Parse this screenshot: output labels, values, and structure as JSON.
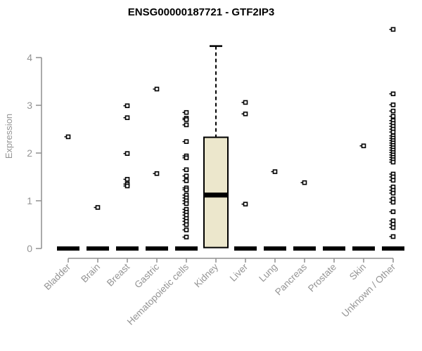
{
  "chart_data": {
    "type": "boxplot",
    "title": "ENSG00000187721 - GTF2IP3",
    "ylabel": "Expression",
    "xlabel": "",
    "ylim": [
      0,
      4.6
    ],
    "yticks": [
      0,
      1,
      2,
      3,
      4
    ],
    "grid": false,
    "legend": "none",
    "colors": {
      "box_fill": "#ECE7CC",
      "box_border": "#000000",
      "median": "#000000",
      "outlier_stroke": "#000000",
      "outlier_fill": "#ffffff",
      "axis": "#8f8f8f",
      "tick_label": "#949494",
      "title": "#000000",
      "background": "#ffffff"
    },
    "categories": [
      "Bladder",
      "Brain",
      "Breast",
      "Gastric",
      "Hematopoietic cells",
      "Kidney",
      "Liver",
      "Lung",
      "Pancreas",
      "Prostate",
      "Skin",
      "Unknown / Other"
    ],
    "series": [
      {
        "category": "Bladder",
        "box": {
          "q1": 0,
          "median": 0,
          "q3": 0,
          "whisker_low": 0,
          "whisker_high": 0
        },
        "outliers": [
          2.34
        ]
      },
      {
        "category": "Brain",
        "box": {
          "q1": 0,
          "median": 0,
          "q3": 0,
          "whisker_low": 0,
          "whisker_high": 0
        },
        "outliers": [
          0.86
        ]
      },
      {
        "category": "Breast",
        "box": {
          "q1": 0,
          "median": 0,
          "q3": 0,
          "whisker_low": 0,
          "whisker_high": 0
        },
        "outliers": [
          2.99,
          2.74,
          1.99,
          1.45,
          1.35,
          1.31
        ]
      },
      {
        "category": "Gastric",
        "box": {
          "q1": 0,
          "median": 0,
          "q3": 0,
          "whisker_low": 0,
          "whisker_high": 0
        },
        "outliers": [
          3.34,
          1.57
        ]
      },
      {
        "category": "Hematopoietic cells",
        "box": {
          "q1": 0,
          "median": 0,
          "q3": 0,
          "whisker_low": 0,
          "whisker_high": 0
        },
        "outliers": [
          2.85,
          2.73,
          2.7,
          2.59,
          2.24,
          1.94,
          1.9,
          1.65,
          1.52,
          1.42,
          1.27,
          1.23,
          1.12,
          1.06,
          1.0,
          0.94,
          0.82,
          0.76,
          0.7,
          0.63,
          0.57,
          0.5,
          0.39,
          0.24
        ]
      },
      {
        "category": "Kidney",
        "box": {
          "q1": 0.02,
          "median": 1.12,
          "q3": 2.33,
          "whisker_low": 0.02,
          "whisker_high": 4.24
        },
        "outliers": []
      },
      {
        "category": "Liver",
        "box": {
          "q1": 0,
          "median": 0,
          "q3": 0,
          "whisker_low": 0,
          "whisker_high": 0
        },
        "outliers": [
          3.06,
          2.82,
          0.93
        ]
      },
      {
        "category": "Lung",
        "box": {
          "q1": 0,
          "median": 0,
          "q3": 0,
          "whisker_low": 0,
          "whisker_high": 0
        },
        "outliers": [
          1.61
        ]
      },
      {
        "category": "Pancreas",
        "box": {
          "q1": 0,
          "median": 0,
          "q3": 0,
          "whisker_low": 0,
          "whisker_high": 0
        },
        "outliers": [
          1.38
        ]
      },
      {
        "category": "Prostate",
        "box": {
          "q1": 0,
          "median": 0,
          "q3": 0,
          "whisker_low": 0,
          "whisker_high": 0
        },
        "outliers": []
      },
      {
        "category": "Skin",
        "box": {
          "q1": 0,
          "median": 0,
          "q3": 0,
          "whisker_low": 0,
          "whisker_high": 0
        },
        "outliers": [
          2.15
        ]
      },
      {
        "category": "Unknown / Other",
        "box": {
          "q1": 0,
          "median": 0,
          "q3": 0,
          "whisker_low": 0,
          "whisker_high": 0
        },
        "outliers": [
          4.59,
          3.24,
          3.01,
          2.88,
          2.77,
          2.68,
          2.62,
          2.56,
          2.5,
          2.44,
          2.36,
          2.31,
          2.26,
          2.21,
          2.16,
          2.11,
          2.06,
          2.01,
          1.96,
          1.91,
          1.86,
          1.81,
          1.56,
          1.5,
          1.43,
          1.29,
          1.22,
          1.16,
          1.04,
          0.97,
          0.77,
          0.58,
          0.51,
          0.44,
          0.25
        ]
      }
    ]
  }
}
